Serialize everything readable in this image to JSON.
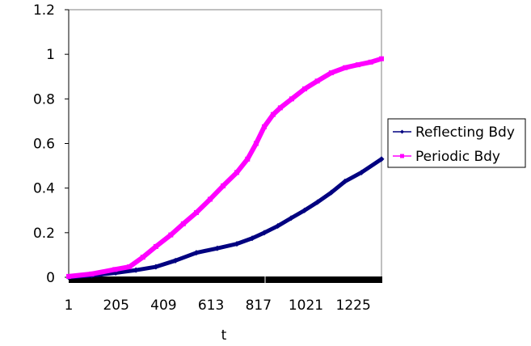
{
  "chart_data": {
    "type": "line",
    "title": "",
    "xlabel": "t",
    "ylabel": "",
    "xlim": [
      1,
      1346
    ],
    "ylim": [
      0,
      1.2
    ],
    "x_ticks": [
      "1",
      "205",
      "409",
      "613",
      "817",
      "1021",
      "1225"
    ],
    "y_ticks": [
      "0",
      "0.2",
      "0.4",
      "0.6",
      "0.8",
      "1",
      "1.2"
    ],
    "grid": false,
    "legend_position": "right",
    "series": [
      {
        "name": "Reflecting Bdy",
        "color": "#000080",
        "marker": "diamond",
        "x": [
          1,
          100,
          203,
          290,
          376,
          460,
          550,
          640,
          724,
          790,
          842,
          900,
          957,
          1015,
          1071,
          1130,
          1189,
          1260,
          1346
        ],
        "y": [
          0,
          0.008,
          0.02,
          0.032,
          0.047,
          0.075,
          0.11,
          0.13,
          0.15,
          0.175,
          0.2,
          0.23,
          0.265,
          0.3,
          0.337,
          0.38,
          0.43,
          0.47,
          0.53
        ]
      },
      {
        "name": "Periodic Bdy",
        "color": "#FF00FF",
        "marker": "square",
        "x": [
          1,
          100,
          200,
          262,
          320,
          376,
          440,
          494,
          550,
          609,
          665,
          724,
          770,
          807,
          842,
          880,
          911,
          960,
          1016,
          1070,
          1130,
          1190,
          1245,
          1300,
          1346
        ],
        "y": [
          0.004,
          0.015,
          0.035,
          0.047,
          0.09,
          0.138,
          0.19,
          0.24,
          0.29,
          0.35,
          0.41,
          0.47,
          0.53,
          0.6,
          0.675,
          0.73,
          0.76,
          0.8,
          0.845,
          0.88,
          0.917,
          0.94,
          0.953,
          0.965,
          0.98
        ]
      }
    ]
  }
}
